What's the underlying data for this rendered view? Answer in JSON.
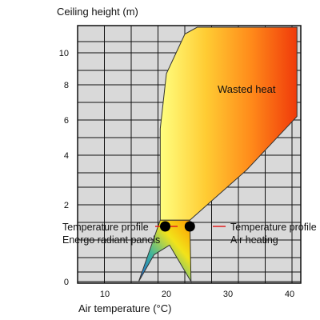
{
  "chart_data": {
    "type": "area",
    "title": "",
    "xlabel": "Air temperature (°C)",
    "ylabel": "Ceiling height (m)",
    "x_ticks": [
      "10",
      "20",
      "30",
      "40"
    ],
    "y_ticks": [
      "0",
      "2",
      "4",
      "6",
      "8",
      "10"
    ],
    "grid": true,
    "background_color": "#d9d9d9",
    "regions": [
      {
        "label": "Wasted heat",
        "gradient": [
          "#ffff80",
          "#ffcc33",
          "#ff8a1a",
          "#f03a0a"
        ],
        "profile_points": [
          [
            23.8,
            1.6
          ],
          [
            33,
            3.4
          ],
          [
            41.2,
            6.2
          ],
          [
            41.2,
            11.5
          ],
          [
            25,
            11.5
          ],
          [
            23,
            11.1
          ],
          [
            20,
            8.7
          ],
          [
            19,
            5.5
          ],
          [
            19,
            1.6
          ]
        ]
      },
      {
        "label": "",
        "gradient": [
          "#1f5fd6",
          "#3bb3a0",
          "#f2e31a",
          "#ff9a00"
        ],
        "profile_points": [
          [
            15.5,
            0
          ],
          [
            18,
            0.7
          ],
          [
            20.5,
            0.95
          ],
          [
            24,
            0
          ],
          [
            23.8,
            1.6
          ],
          [
            19,
            1.6
          ]
        ]
      }
    ],
    "markers": [
      {
        "x": 19.8,
        "y": 1.6,
        "label": [
          "Temperature profile",
          "Energo radiant panels"
        ]
      },
      {
        "x": 23.8,
        "y": 1.6,
        "label": [
          "Temperature profile",
          "Air heating"
        ]
      }
    ]
  }
}
